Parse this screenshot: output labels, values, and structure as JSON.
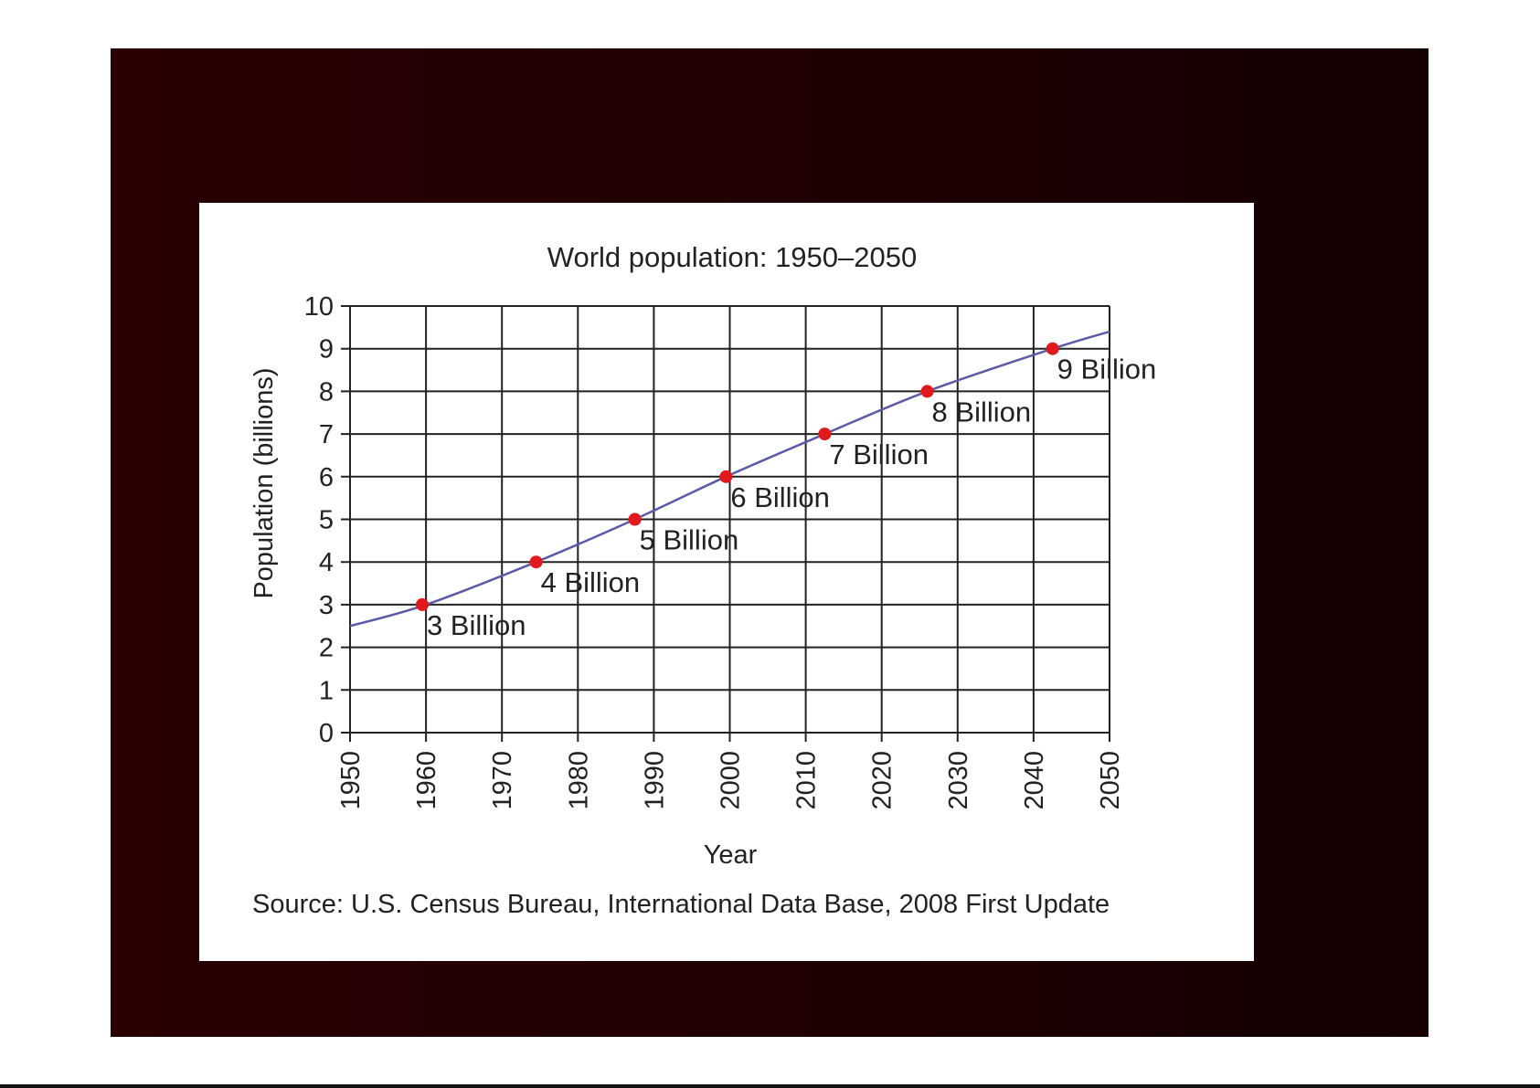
{
  "chart_data": {
    "type": "line",
    "title": "World population: 1950–2050",
    "xlabel": "Year",
    "ylabel": "Population (billions)",
    "source": "Source: U.S. Census Bureau, International Data Base, 2008 First Update",
    "xlim": [
      1950,
      2050
    ],
    "ylim": [
      0,
      10
    ],
    "x_ticks": [
      1950,
      1960,
      1970,
      1980,
      1990,
      2000,
      2010,
      2020,
      2030,
      2040,
      2050
    ],
    "y_ticks": [
      0,
      1,
      2,
      3,
      4,
      5,
      6,
      7,
      8,
      9,
      10
    ],
    "grid": true,
    "series": [
      {
        "color": "#5a5aa8",
        "points": [
          [
            1950,
            2.5
          ],
          [
            1960,
            3.0
          ],
          [
            1974.5,
            4.0
          ],
          [
            1987.5,
            5.0
          ],
          [
            1999.5,
            6.0
          ],
          [
            2012.5,
            7.0
          ],
          [
            2026,
            8.0
          ],
          [
            2042.5,
            9.0
          ],
          [
            2050,
            9.4
          ]
        ]
      }
    ],
    "milestones": [
      {
        "x": 1959.5,
        "y": 3,
        "label": "3 Billion"
      },
      {
        "x": 1974.5,
        "y": 4,
        "label": "4 Billion"
      },
      {
        "x": 1987.5,
        "y": 5,
        "label": "5 Billion"
      },
      {
        "x": 1999.5,
        "y": 6,
        "label": "6 Billion"
      },
      {
        "x": 2012.5,
        "y": 7,
        "label": "7 Billion"
      },
      {
        "x": 2026,
        "y": 8,
        "label": "8 Billion"
      },
      {
        "x": 2042.5,
        "y": 9,
        "label": "9 Billion"
      }
    ],
    "marker_color": "#e0191c"
  }
}
